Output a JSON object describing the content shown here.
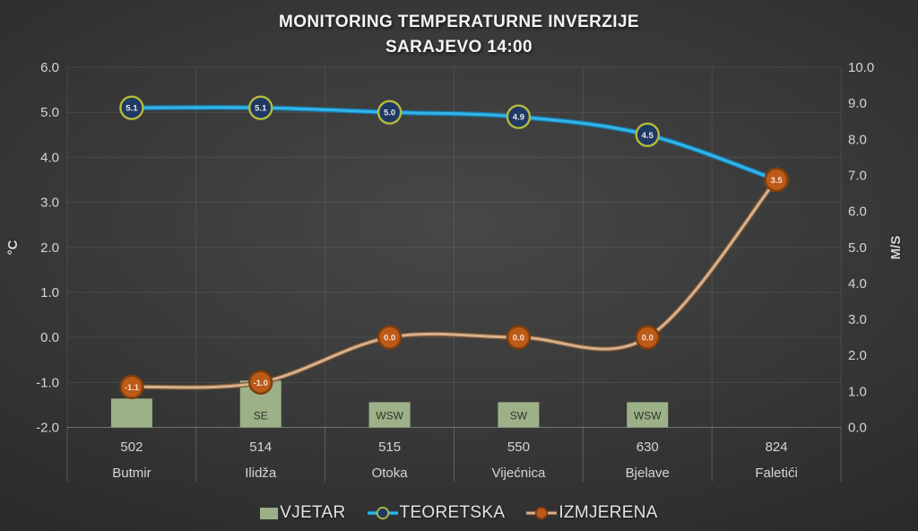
{
  "chart_data": {
    "type": "combo",
    "title_line1": "MONITORING TEMPERATURNE INVERZIJE",
    "title_line2": "SARAJEVO 14:00",
    "categories": [
      "Butmir",
      "Ilidža",
      "Otoka",
      "Vijećnica",
      "Bjelave",
      "Faletići"
    ],
    "elevations": [
      "502",
      "514",
      "515",
      "550",
      "630",
      "824"
    ],
    "left_axis": {
      "label": "°C",
      "min": -2.0,
      "max": 6.0,
      "ticks": [
        "6.0",
        "5.0",
        "4.0",
        "3.0",
        "2.0",
        "1.0",
        "0.0",
        "-1.0",
        "-2.0"
      ]
    },
    "right_axis": {
      "label": "M/S",
      "min": 0.0,
      "max": 10.0,
      "ticks": [
        "10.0",
        "9.0",
        "8.0",
        "7.0",
        "6.0",
        "5.0",
        "4.0",
        "3.0",
        "2.0",
        "1.0",
        "0.0"
      ]
    },
    "grid": true,
    "legend_position": "bottom",
    "series": [
      {
        "name": "VJETAR",
        "type": "bar",
        "axis": "right",
        "values": [
          0.8,
          1.3,
          0.7,
          0.7,
          0.7,
          0
        ],
        "wind_directions": [
          "",
          "SE",
          "WSW",
          "SW",
          "WSW",
          ""
        ],
        "color": "#9db189",
        "label_color": "#2e3228"
      },
      {
        "name": "TEORETSKA",
        "type": "line",
        "axis": "left",
        "smooth": true,
        "values": [
          5.1,
          5.1,
          5.0,
          4.9,
          4.5,
          3.5
        ],
        "labels": [
          "5.1",
          "5.1",
          "5.0",
          "4.9",
          "4.5",
          "3.5"
        ],
        "line_color": "#33b5e8",
        "line_edge_color": "#1879aa",
        "marker_fill": "#1f3864",
        "marker_ring": "#b3bb3b",
        "label_color": "#e9e9e9"
      },
      {
        "name": "IZMJERENA",
        "type": "line",
        "axis": "left",
        "smooth": true,
        "values": [
          -1.1,
          -1.0,
          0.0,
          0.0,
          0.0,
          3.5
        ],
        "labels": [
          "-1.1",
          "-1.0",
          "0.0",
          "0.0",
          "0.0",
          "3.5"
        ],
        "line_color": "#d8b18c",
        "line_edge_color": "#7a5638",
        "marker_fill": "#bc5a17",
        "marker_ring": "#7d3d0e",
        "label_color": "#f3e2d4"
      }
    ],
    "legend": {
      "items": [
        "VJETAR",
        "TEORETSKA",
        "IZMJERENA"
      ]
    }
  }
}
